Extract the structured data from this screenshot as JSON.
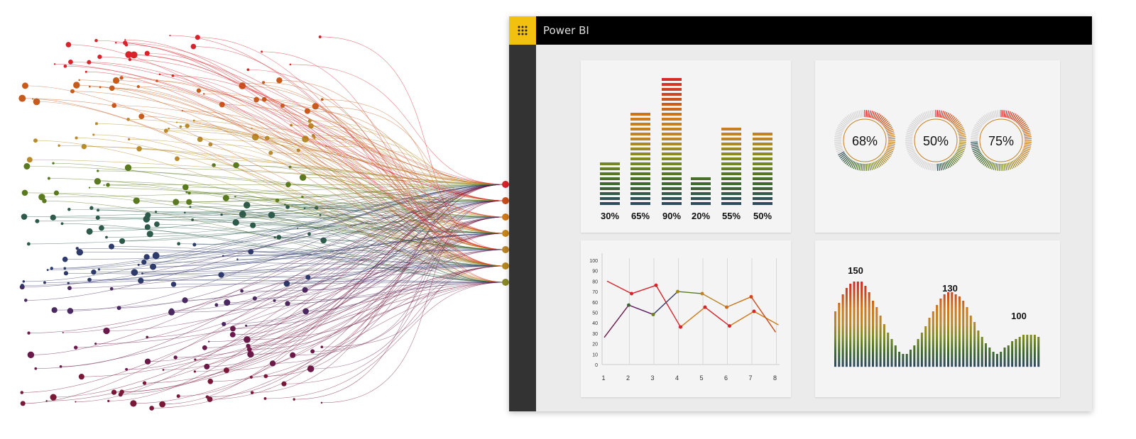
{
  "app": {
    "title": "Power BI",
    "menu_icon": "waffle-grid-icon",
    "accent": "#f2c10f"
  },
  "palette": [
    "#2d4a5e",
    "#3f6b2a",
    "#7a8a20",
    "#b9862a",
    "#d07a1a",
    "#c94e1c",
    "#d9232a"
  ],
  "bar_card": {
    "chart_data": {
      "type": "bar",
      "categories": [
        "30%",
        "65%",
        "90%",
        "20%",
        "55%",
        "50%"
      ],
      "values": [
        30,
        65,
        90,
        20,
        55,
        50
      ]
    }
  },
  "gauge_card": {
    "chart_data": {
      "type": "gauge",
      "values": [
        68,
        50,
        75
      ],
      "labels": [
        "68%",
        "50%",
        "75%"
      ]
    }
  },
  "line_card": {
    "chart_data": {
      "type": "line",
      "x": [
        1,
        2,
        3,
        4,
        5,
        6,
        7,
        8
      ],
      "y_ticks": [
        "0",
        "10",
        "20",
        "30",
        "40",
        "50",
        "60",
        "70",
        "80",
        "90",
        "100"
      ],
      "x_ticks": [
        "1",
        "2",
        "3",
        "4",
        "5",
        "6",
        "7",
        "8"
      ],
      "ylim": [
        0,
        100
      ],
      "grid": true,
      "series": [
        {
          "values": [
            80,
            68,
            76,
            36,
            55,
            37,
            51,
            38
          ]
        },
        {
          "values": [
            26,
            57,
            48,
            70,
            68,
            55,
            65,
            31
          ]
        }
      ]
    }
  },
  "wave_card": {
    "chart_data": {
      "type": "bar",
      "peak_labels": [
        "150",
        "130",
        "100"
      ],
      "peaks": [
        150,
        130,
        100
      ]
    }
  }
}
